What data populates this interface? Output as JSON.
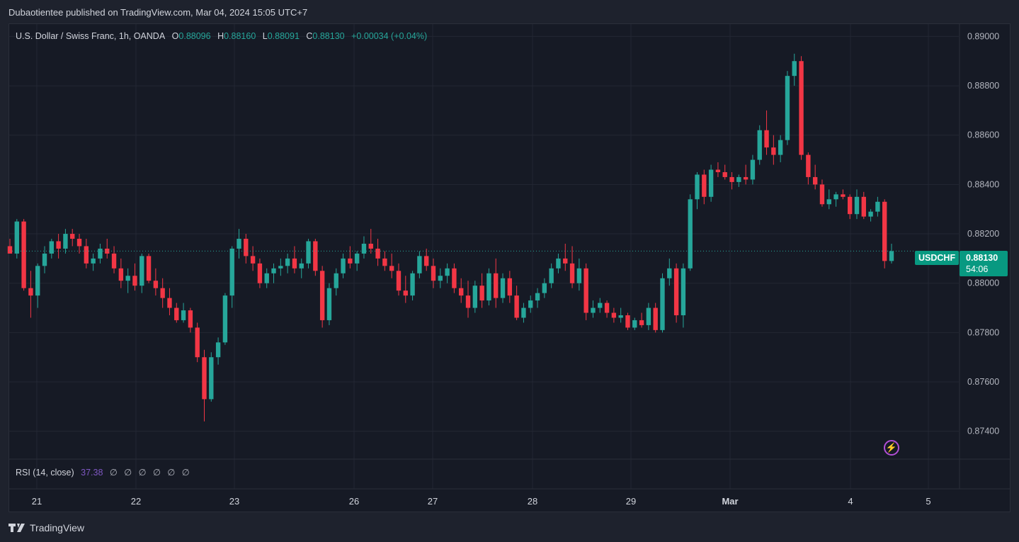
{
  "header": {
    "published_text": "Dubaotientee published on TradingView.com, Mar 04, 2024 15:05 UTC+7"
  },
  "legend": {
    "symbol_desc": "U.S. Dollar / Swiss Franc, 1h, OANDA",
    "o_label": "O",
    "o_value": "0.88096",
    "h_label": "H",
    "h_value": "0.88160",
    "l_label": "L",
    "l_value": "0.88091",
    "c_label": "C",
    "c_value": "0.88130",
    "change": "+0.00034 (+0.04%)"
  },
  "rsi": {
    "label": "RSI (14, close)",
    "value": "37.38",
    "na_values": [
      "∅",
      "∅",
      "∅",
      "∅",
      "∅",
      "∅"
    ]
  },
  "price_tag": {
    "symbol": "USDCHF",
    "price": "0.88130",
    "countdown": "54:06"
  },
  "footer": {
    "brand": "TradingView"
  },
  "icons": {
    "alert": "lightning-bolt-icon",
    "logo": "tradingview-logo-icon"
  },
  "colors": {
    "up": "#26a69a",
    "down": "#f23645",
    "background": "#161a25",
    "grid": "#232733",
    "text": "#d1d4dc",
    "rsi": "#7e57c2",
    "badge": "#089981"
  },
  "chart_data": {
    "type": "candlestick",
    "symbol": "USDCHF",
    "timeframe": "1h",
    "ylim": [
      0.8729,
      0.8905
    ],
    "y_ticks": [
      "0.89000",
      "0.88800",
      "0.88600",
      "0.88400",
      "0.88200",
      "0.88000",
      "0.87800",
      "0.87600",
      "0.87400"
    ],
    "x_ticks": [
      "21",
      "22",
      "23",
      "26",
      "27",
      "28",
      "29",
      "Mar",
      "4",
      "5"
    ],
    "last_price": 0.8813,
    "candles": [
      [
        0.8815,
        0.8818,
        0.8812,
        0.8812
      ],
      [
        0.8812,
        0.8826,
        0.881,
        0.8825
      ],
      [
        0.8825,
        0.8826,
        0.8797,
        0.8798
      ],
      [
        0.8798,
        0.8805,
        0.8786,
        0.8795
      ],
      [
        0.8795,
        0.8808,
        0.879,
        0.8807
      ],
      [
        0.8807,
        0.8815,
        0.8804,
        0.8812
      ],
      [
        0.8812,
        0.8818,
        0.881,
        0.8817
      ],
      [
        0.8817,
        0.882,
        0.881,
        0.8814
      ],
      [
        0.8814,
        0.8822,
        0.8812,
        0.882
      ],
      [
        0.882,
        0.8822,
        0.8815,
        0.8818
      ],
      [
        0.8818,
        0.882,
        0.8812,
        0.8815
      ],
      [
        0.8815,
        0.8818,
        0.8806,
        0.8808
      ],
      [
        0.8808,
        0.8812,
        0.8805,
        0.881
      ],
      [
        0.881,
        0.8816,
        0.8808,
        0.8814
      ],
      [
        0.8814,
        0.8818,
        0.881,
        0.8812
      ],
      [
        0.8812,
        0.8815,
        0.8804,
        0.8806
      ],
      [
        0.8806,
        0.881,
        0.8798,
        0.8801
      ],
      [
        0.8801,
        0.8806,
        0.8796,
        0.8803
      ],
      [
        0.8803,
        0.8808,
        0.8797,
        0.8799
      ],
      [
        0.8799,
        0.8812,
        0.8796,
        0.8811
      ],
      [
        0.8811,
        0.8812,
        0.88,
        0.8801
      ],
      [
        0.8801,
        0.8806,
        0.8795,
        0.8798
      ],
      [
        0.8798,
        0.8802,
        0.879,
        0.8794
      ],
      [
        0.8794,
        0.8798,
        0.8787,
        0.879
      ],
      [
        0.879,
        0.8792,
        0.8784,
        0.8785
      ],
      [
        0.8785,
        0.8792,
        0.8784,
        0.8789
      ],
      [
        0.8789,
        0.879,
        0.878,
        0.8782
      ],
      [
        0.8782,
        0.8784,
        0.8768,
        0.877
      ],
      [
        0.877,
        0.8773,
        0.8744,
        0.8753
      ],
      [
        0.8753,
        0.8772,
        0.8752,
        0.877
      ],
      [
        0.877,
        0.8778,
        0.8767,
        0.8776
      ],
      [
        0.8776,
        0.8796,
        0.8775,
        0.8795
      ],
      [
        0.8795,
        0.8815,
        0.879,
        0.8814
      ],
      [
        0.8814,
        0.8822,
        0.881,
        0.8818
      ],
      [
        0.8818,
        0.882,
        0.8808,
        0.8811
      ],
      [
        0.8811,
        0.8815,
        0.8805,
        0.8808
      ],
      [
        0.8808,
        0.881,
        0.8798,
        0.88
      ],
      [
        0.88,
        0.8806,
        0.8798,
        0.8804
      ],
      [
        0.8804,
        0.8808,
        0.88,
        0.8806
      ],
      [
        0.8806,
        0.881,
        0.8803,
        0.8807
      ],
      [
        0.8807,
        0.8812,
        0.8804,
        0.881
      ],
      [
        0.881,
        0.8815,
        0.8804,
        0.8806
      ],
      [
        0.8806,
        0.881,
        0.8802,
        0.8808
      ],
      [
        0.8808,
        0.8818,
        0.8806,
        0.8817
      ],
      [
        0.8817,
        0.8818,
        0.8803,
        0.8805
      ],
      [
        0.8805,
        0.8807,
        0.8782,
        0.8785
      ],
      [
        0.8785,
        0.88,
        0.8783,
        0.8798
      ],
      [
        0.8798,
        0.8806,
        0.8795,
        0.8804
      ],
      [
        0.8804,
        0.8812,
        0.8802,
        0.881
      ],
      [
        0.881,
        0.8815,
        0.8806,
        0.8808
      ],
      [
        0.8808,
        0.8813,
        0.8805,
        0.8812
      ],
      [
        0.8812,
        0.8819,
        0.881,
        0.8816
      ],
      [
        0.8816,
        0.8822,
        0.8812,
        0.8814
      ],
      [
        0.8814,
        0.8818,
        0.8807,
        0.881
      ],
      [
        0.881,
        0.8813,
        0.8805,
        0.8807
      ],
      [
        0.8807,
        0.8812,
        0.8802,
        0.8805
      ],
      [
        0.8805,
        0.8808,
        0.8795,
        0.8797
      ],
      [
        0.8797,
        0.8803,
        0.8792,
        0.8795
      ],
      [
        0.8795,
        0.8805,
        0.8793,
        0.8804
      ],
      [
        0.8804,
        0.8813,
        0.8802,
        0.8811
      ],
      [
        0.8811,
        0.8814,
        0.8805,
        0.8807
      ],
      [
        0.8807,
        0.881,
        0.8798,
        0.8801
      ],
      [
        0.8801,
        0.8806,
        0.8798,
        0.8803
      ],
      [
        0.8803,
        0.8808,
        0.88,
        0.8806
      ],
      [
        0.8806,
        0.8808,
        0.8796,
        0.8798
      ],
      [
        0.8798,
        0.8802,
        0.8792,
        0.8795
      ],
      [
        0.8795,
        0.8801,
        0.8786,
        0.879
      ],
      [
        0.879,
        0.8801,
        0.8788,
        0.8799
      ],
      [
        0.8799,
        0.8804,
        0.879,
        0.8793
      ],
      [
        0.8793,
        0.8806,
        0.8791,
        0.8804
      ],
      [
        0.8804,
        0.881,
        0.879,
        0.8794
      ],
      [
        0.8794,
        0.8804,
        0.8792,
        0.8802
      ],
      [
        0.8802,
        0.8805,
        0.8792,
        0.8795
      ],
      [
        0.8795,
        0.8799,
        0.8785,
        0.8786
      ],
      [
        0.8786,
        0.8792,
        0.8784,
        0.879
      ],
      [
        0.879,
        0.8795,
        0.8788,
        0.8793
      ],
      [
        0.8793,
        0.8798,
        0.879,
        0.8796
      ],
      [
        0.8796,
        0.8802,
        0.8794,
        0.88
      ],
      [
        0.88,
        0.8808,
        0.8798,
        0.8806
      ],
      [
        0.8806,
        0.8812,
        0.8804,
        0.881
      ],
      [
        0.881,
        0.8816,
        0.8805,
        0.8808
      ],
      [
        0.8808,
        0.8815,
        0.8798,
        0.88
      ],
      [
        0.88,
        0.881,
        0.8797,
        0.8806
      ],
      [
        0.8806,
        0.8808,
        0.8785,
        0.8788
      ],
      [
        0.8788,
        0.8793,
        0.8786,
        0.879
      ],
      [
        0.879,
        0.8794,
        0.8788,
        0.8792
      ],
      [
        0.8792,
        0.8793,
        0.8786,
        0.8788
      ],
      [
        0.8788,
        0.879,
        0.8784,
        0.8786
      ],
      [
        0.8786,
        0.879,
        0.8784,
        0.8787
      ],
      [
        0.8787,
        0.8788,
        0.8781,
        0.8782
      ],
      [
        0.8782,
        0.8786,
        0.8781,
        0.8785
      ],
      [
        0.8785,
        0.8788,
        0.8782,
        0.8783
      ],
      [
        0.8783,
        0.8792,
        0.8781,
        0.879
      ],
      [
        0.879,
        0.8792,
        0.878,
        0.8781
      ],
      [
        0.8781,
        0.8804,
        0.878,
        0.8802
      ],
      [
        0.8802,
        0.881,
        0.8799,
        0.8806
      ],
      [
        0.8806,
        0.8808,
        0.8784,
        0.8787
      ],
      [
        0.8787,
        0.8808,
        0.8782,
        0.8806
      ],
      [
        0.8806,
        0.8836,
        0.8805,
        0.8834
      ],
      [
        0.8834,
        0.8845,
        0.883,
        0.8844
      ],
      [
        0.8844,
        0.8846,
        0.8832,
        0.8835
      ],
      [
        0.8835,
        0.8848,
        0.8833,
        0.8846
      ],
      [
        0.8846,
        0.8849,
        0.8843,
        0.8845
      ],
      [
        0.8845,
        0.8848,
        0.8842,
        0.8843
      ],
      [
        0.8843,
        0.8845,
        0.8838,
        0.8841
      ],
      [
        0.8841,
        0.8844,
        0.8839,
        0.8843
      ],
      [
        0.8843,
        0.8848,
        0.884,
        0.8842
      ],
      [
        0.8842,
        0.8852,
        0.884,
        0.885
      ],
      [
        0.885,
        0.8864,
        0.8848,
        0.8862
      ],
      [
        0.8862,
        0.887,
        0.8852,
        0.8855
      ],
      [
        0.8855,
        0.886,
        0.8848,
        0.8852
      ],
      [
        0.8852,
        0.886,
        0.8849,
        0.8858
      ],
      [
        0.8858,
        0.8886,
        0.8856,
        0.8884
      ],
      [
        0.8884,
        0.8893,
        0.888,
        0.889
      ],
      [
        0.889,
        0.8892,
        0.885,
        0.8852
      ],
      [
        0.8852,
        0.8853,
        0.884,
        0.8843
      ],
      [
        0.8843,
        0.8848,
        0.8838,
        0.884
      ],
      [
        0.884,
        0.8842,
        0.8831,
        0.8832
      ],
      [
        0.8832,
        0.8838,
        0.883,
        0.8834
      ],
      [
        0.8834,
        0.8837,
        0.8831,
        0.8836
      ],
      [
        0.8836,
        0.8838,
        0.8834,
        0.8835
      ],
      [
        0.8835,
        0.8836,
        0.8826,
        0.8828
      ],
      [
        0.8828,
        0.8838,
        0.8826,
        0.8835
      ],
      [
        0.8835,
        0.8837,
        0.8826,
        0.8827
      ],
      [
        0.8827,
        0.883,
        0.8825,
        0.8829
      ],
      [
        0.8829,
        0.8835,
        0.8827,
        0.8833
      ],
      [
        0.8833,
        0.8834,
        0.8806,
        0.8809
      ],
      [
        0.8809,
        0.8816,
        0.8808,
        0.8813
      ]
    ]
  }
}
